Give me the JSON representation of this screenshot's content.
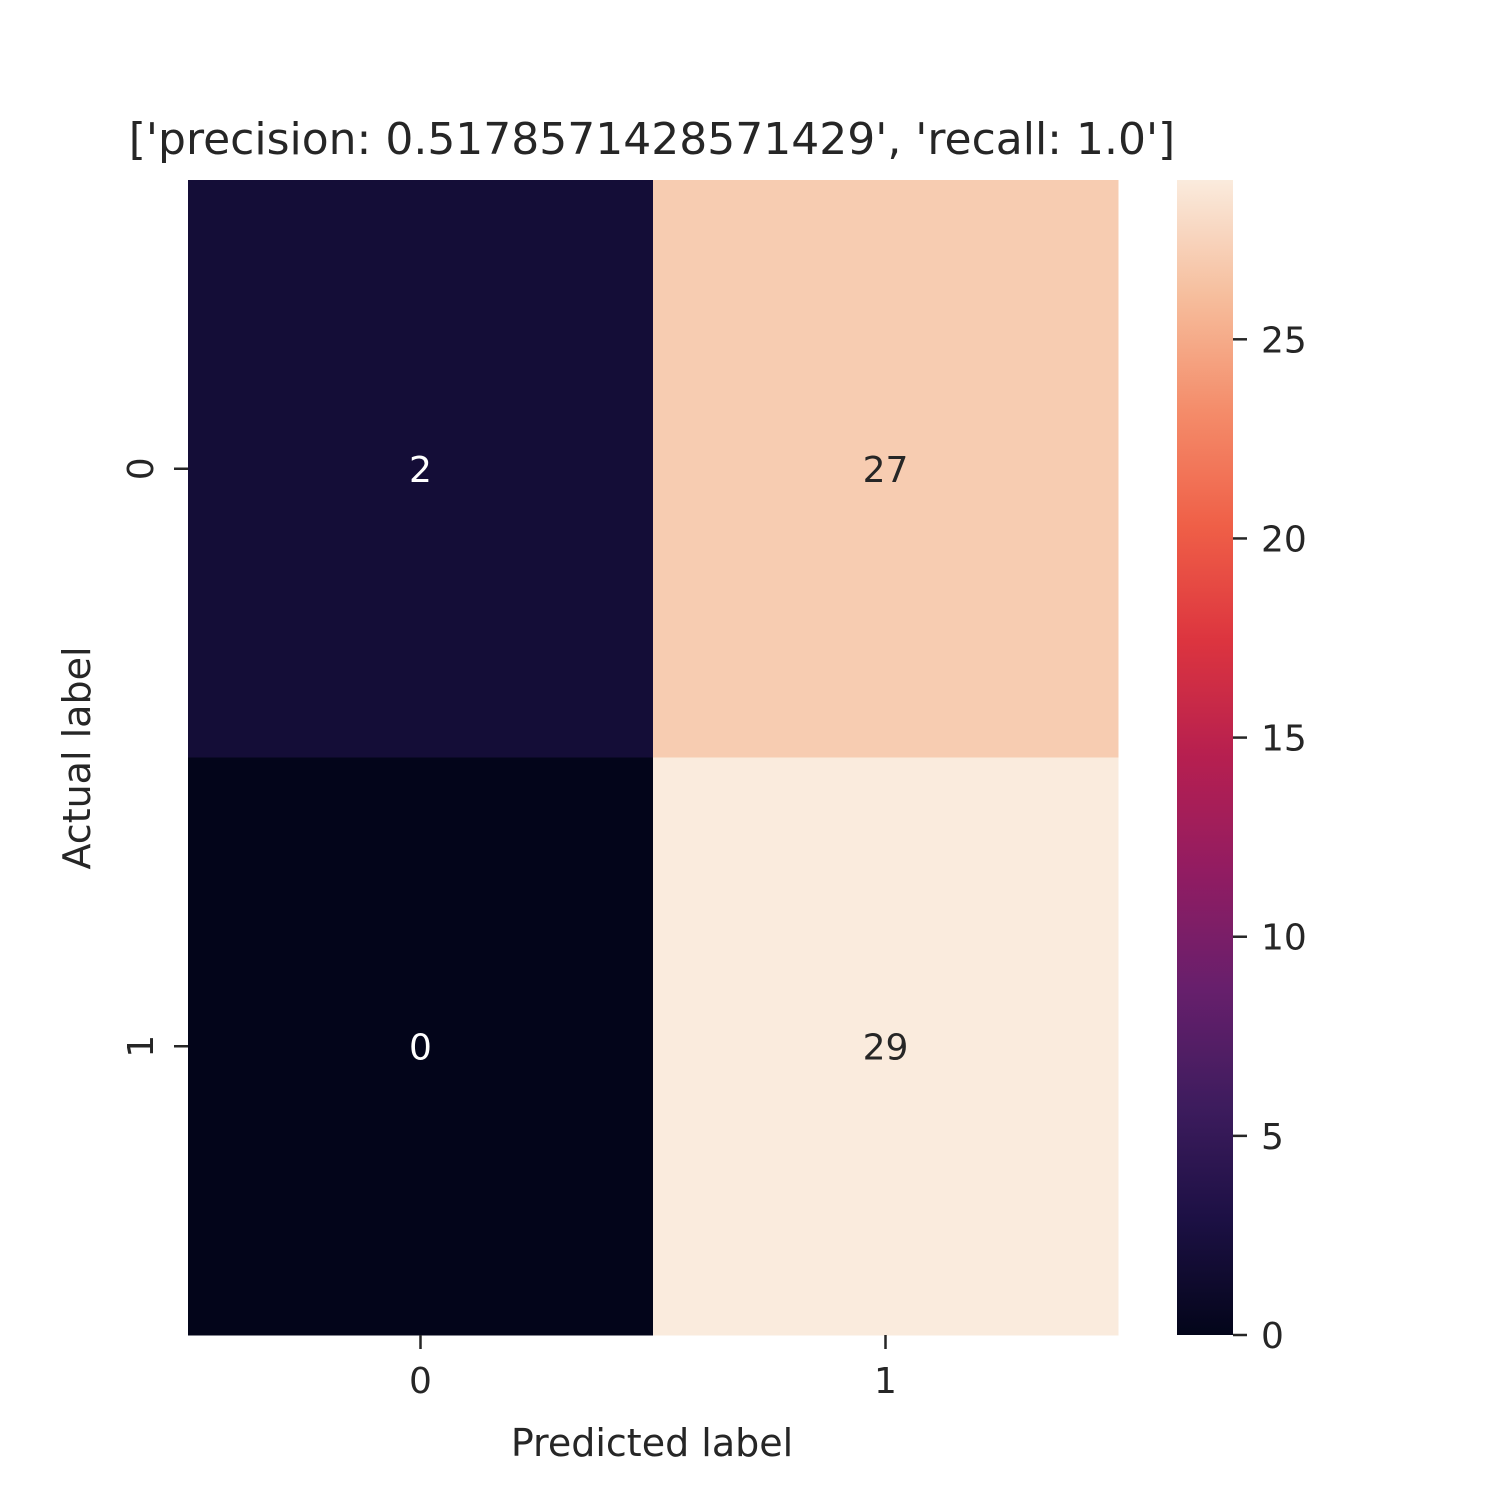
{
  "chart_data": {
    "type": "heatmap",
    "title": "['precision: 0.5178571428571429', 'recall: 1.0']",
    "xlabel": "Predicted label",
    "ylabel": "Actual label",
    "x_categories": [
      "0",
      "1"
    ],
    "y_categories": [
      "0",
      "1"
    ],
    "values": [
      [
        2,
        27
      ],
      [
        0,
        29
      ]
    ],
    "colormap": "rocket",
    "colorbar": {
      "range": [
        0,
        29
      ],
      "ticks": [
        0,
        5,
        10,
        15,
        20,
        25
      ],
      "tick_labels": [
        "0",
        "5",
        "10",
        "15",
        "20",
        "25"
      ]
    }
  }
}
